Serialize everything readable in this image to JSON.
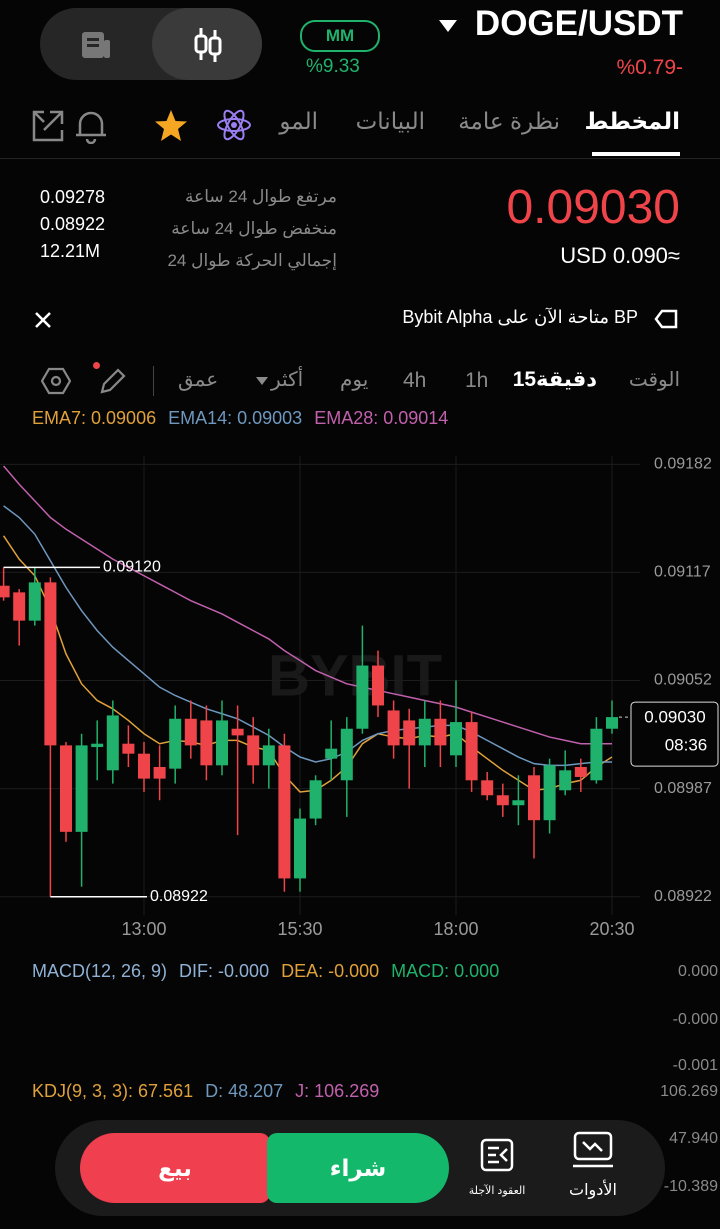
{
  "header": {
    "pair": "DOGE/USDT",
    "change": "%0.79-",
    "badge": "MM",
    "badge_value": "%9.33"
  },
  "tabs": [
    "المخطط",
    "نظرة عامة",
    "البيانات",
    "المو"
  ],
  "quote": {
    "price": "0.09030",
    "usd": "USD 0.090≈"
  },
  "stats": {
    "labels": [
      "مرتفع طوال 24 ساعة",
      "منخفض طوال 24 ساعة",
      "إجمالي الحركة طوال 24"
    ],
    "values": [
      "0.09278",
      "0.08922",
      "12.21M"
    ]
  },
  "banner": "BP متاحة الآن على Bybit Alpha",
  "intervals": [
    "الوقت",
    "15دقيقة",
    "1h",
    "4h",
    "يوم",
    "أكثر",
    "عمق"
  ],
  "chart_data": {
    "type": "candlestick",
    "watermark": "BYBIT",
    "categories": [
      null,
      null,
      null,
      null,
      null,
      null,
      null,
      null,
      null,
      "13:00",
      null,
      null,
      null,
      null,
      null,
      null,
      null,
      null,
      null,
      "15:30",
      null,
      null,
      null,
      null,
      null,
      null,
      null,
      null,
      null,
      "18:00",
      null,
      null,
      null,
      null,
      null,
      null,
      null,
      null,
      null,
      "20:30"
    ],
    "open": [
      0.09109,
      0.09105,
      0.09088,
      0.09111,
      0.09013,
      0.08961,
      0.09012,
      0.08998,
      0.09014,
      0.09008,
      0.09,
      0.08999,
      0.09029,
      0.09028,
      0.09001,
      0.09023,
      0.09019,
      0.09001,
      0.09013,
      0.08933,
      0.08969,
      0.09005,
      0.08992,
      0.09023,
      0.09061,
      0.09034,
      0.09028,
      0.09013,
      0.09029,
      0.09007,
      0.09027,
      0.08992,
      0.08983,
      0.08977,
      0.08995,
      0.08968,
      0.08986,
      0.09,
      0.08992,
      0.09023
    ],
    "high": [
      0.0912,
      0.09107,
      0.0912,
      0.09114,
      0.09015,
      0.0902,
      0.09028,
      0.0904,
      0.09025,
      0.09015,
      0.09013,
      0.09037,
      0.0904,
      0.09037,
      0.0904,
      0.09037,
      0.0903,
      0.09023,
      0.0902,
      0.08975,
      0.08995,
      0.09028,
      0.0903,
      0.09085,
      0.0907,
      0.0904,
      0.09035,
      0.0904,
      0.0904,
      0.09052,
      0.09033,
      0.08997,
      0.0899,
      0.08995,
      0.09,
      0.09005,
      0.0901,
      0.09005,
      0.0903,
      0.0904
    ],
    "low": [
      0.091,
      0.09073,
      0.09085,
      0.08922,
      0.08955,
      0.08928,
      0.08992,
      0.0899,
      0.09,
      0.08985,
      0.0898,
      0.0899,
      0.09005,
      0.08992,
      0.08995,
      0.08959,
      0.0899,
      0.08987,
      0.08925,
      0.08925,
      0.08965,
      0.08992,
      0.0897,
      0.0902,
      0.0903,
      0.09005,
      0.08987,
      0.09,
      0.09,
      0.09,
      0.08985,
      0.0898,
      0.0897,
      0.08965,
      0.08945,
      0.0896,
      0.08983,
      0.08985,
      0.0899,
      0.0902
    ],
    "close": [
      0.09102,
      0.09088,
      0.09111,
      0.09013,
      0.08961,
      0.09013,
      0.09014,
      0.09031,
      0.09008,
      0.08993,
      0.08993,
      0.09029,
      0.09013,
      0.09001,
      0.09028,
      0.09019,
      0.09001,
      0.09013,
      0.08933,
      0.08969,
      0.08992,
      0.09011,
      0.09023,
      0.09061,
      0.09037,
      0.09013,
      0.09013,
      0.09029,
      0.09013,
      0.09027,
      0.08992,
      0.08983,
      0.08977,
      0.0898,
      0.08968,
      0.09001,
      0.08998,
      0.08994,
      0.09023,
      0.0903
    ],
    "series": [
      {
        "name": "EMA7: 0.09006",
        "color": "#e0a13a",
        "values": [
          0.09139,
          0.09125,
          0.09115,
          0.09095,
          0.09068,
          0.0905,
          0.0904,
          0.09035,
          0.09028,
          0.0902,
          0.09014,
          0.09016,
          0.09015,
          0.09013,
          0.09016,
          0.09016,
          0.09012,
          0.0901,
          0.08995,
          0.08985,
          0.08986,
          0.08992,
          0.09,
          0.09014,
          0.0902,
          0.09018,
          0.09017,
          0.09019,
          0.09018,
          0.0902,
          0.09012,
          0.09005,
          0.08998,
          0.08992,
          0.08986,
          0.08987,
          0.0899,
          0.08992,
          0.09,
          0.09006
        ]
      },
      {
        "name": "EMA14: 0.09003",
        "color": "#6f98bf",
        "values": [
          0.09157,
          0.0915,
          0.0914,
          0.09124,
          0.09108,
          0.09094,
          0.09082,
          0.09072,
          0.09064,
          0.09056,
          0.09048,
          0.09043,
          0.09039,
          0.09035,
          0.09032,
          0.09029,
          0.09024,
          0.09019,
          0.09012,
          0.09006,
          0.09003,
          0.09005,
          0.09009,
          0.09016,
          0.0902,
          0.09022,
          0.09023,
          0.09024,
          0.09025,
          0.09025,
          0.09021,
          0.09016,
          0.09011,
          0.09006,
          0.09002,
          0.09001,
          0.09001,
          0.09002,
          0.09003,
          0.09003
        ]
      },
      {
        "name": "EMA28: 0.09014",
        "color": "#c160ad",
        "values": [
          0.09181,
          0.0917,
          0.0916,
          0.0915,
          0.09143,
          0.09137,
          0.09131,
          0.09125,
          0.0912,
          0.09115,
          0.0911,
          0.09105,
          0.091,
          0.09096,
          0.09092,
          0.09087,
          0.09082,
          0.09077,
          0.0907,
          0.09064,
          0.09058,
          0.09054,
          0.0905,
          0.09048,
          0.09046,
          0.09044,
          0.09042,
          0.0904,
          0.09038,
          0.09036,
          0.09033,
          0.0903,
          0.09027,
          0.09024,
          0.09021,
          0.09018,
          0.09016,
          0.09014,
          0.09014,
          0.09014
        ]
      }
    ],
    "up_color": "#20b26c",
    "down_color": "#ef454a",
    "ylim": [
      0.08911,
      0.09187
    ],
    "yticks": [
      0.08922,
      0.08987,
      0.09052,
      0.09117,
      0.09182
    ],
    "grid": true,
    "max_label": {
      "value": 0.0912,
      "label": "0.09120"
    },
    "min_label": 0.08922,
    "last_price": {
      "value": 0.0903,
      "label": "0.09030"
    },
    "last_time": "08:36"
  },
  "macd": {
    "legend": [
      "MACD(12, 26, 9)",
      "DIF: -0.000",
      "DEA: -0.000",
      "MACD: 0.000"
    ],
    "axis": [
      "0.000",
      "-0.000",
      "-0.001"
    ]
  },
  "kdj": {
    "legend": [
      "KDJ(9, 3, 3): 67.561",
      "D: 48.207",
      "J: 106.269"
    ],
    "axis": [
      "106.269",
      "47.940",
      "-10.389"
    ]
  },
  "bottom_bar": {
    "sell": "بيع",
    "buy": "شراء",
    "futures": "العقود الآجلة",
    "tools": "الأدوات"
  }
}
